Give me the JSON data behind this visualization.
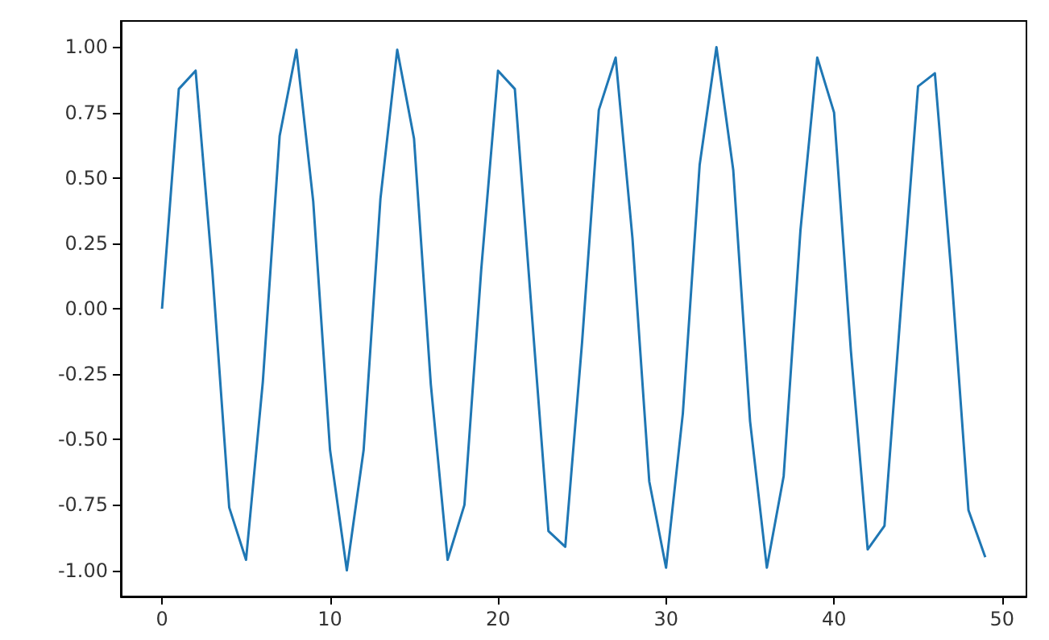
{
  "chart_data": {
    "type": "line",
    "x": [
      0,
      1,
      2,
      3,
      4,
      5,
      6,
      7,
      8,
      9,
      10,
      11,
      12,
      13,
      14,
      15,
      16,
      17,
      18,
      19,
      20,
      21,
      22,
      23,
      24,
      25,
      26,
      27,
      28,
      29,
      30,
      31,
      32,
      33,
      34,
      35,
      36,
      37,
      38,
      39,
      40,
      41,
      42,
      43,
      44,
      45,
      46,
      47,
      48,
      49
    ],
    "series": [
      {
        "color": "#1f77b4",
        "values": [
          0.0,
          0.84,
          0.91,
          0.14,
          -0.76,
          -0.96,
          -0.28,
          0.66,
          0.99,
          0.41,
          -0.54,
          -1.0,
          -0.54,
          0.42,
          0.99,
          0.65,
          -0.29,
          -0.96,
          -0.75,
          0.15,
          0.91,
          0.84,
          -0.01,
          -0.85,
          -0.91,
          -0.13,
          0.76,
          0.96,
          0.27,
          -0.66,
          -0.99,
          -0.4,
          0.55,
          1.0,
          0.53,
          -0.43,
          -0.99,
          -0.64,
          0.3,
          0.96,
          0.75,
          -0.16,
          -0.92,
          -0.83,
          0.02,
          0.85,
          0.9,
          0.12,
          -0.77,
          -0.95
        ]
      }
    ],
    "xlim": [
      -2.45,
      51.45
    ],
    "xticks": [
      0,
      10,
      20,
      30,
      40,
      50
    ],
    "ylim": [
      -1.1,
      1.1
    ],
    "yticks": [
      {
        "value": -1,
        "label": "-1.00"
      },
      {
        "value": -0.75,
        "label": "-0.75"
      },
      {
        "value": -0.5,
        "label": "-0.50"
      },
      {
        "value": -0.25,
        "label": "-0.25"
      },
      {
        "value": 0,
        "label": "0.00"
      },
      {
        "value": 0.25,
        "label": "0.25"
      },
      {
        "value": 0.5,
        "label": "0.50"
      },
      {
        "value": 0.75,
        "label": "0.75"
      },
      {
        "value": 1,
        "label": "1.00"
      }
    ],
    "grid": false,
    "marker": "none",
    "line_style": "solid"
  }
}
